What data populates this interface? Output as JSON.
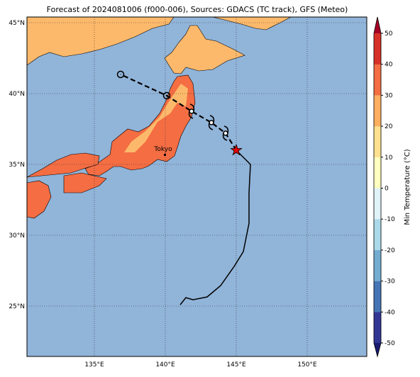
{
  "title": "Forecast of 2024081006 (f000-006), Sources: GDACS (TC track), GFS (Meteo)",
  "map": {
    "lonlim": [
      130.25,
      154.2
    ],
    "latlim": [
      21.45,
      45.4
    ],
    "lonticks": [
      {
        "value": 135,
        "label": "135°E"
      },
      {
        "value": 140,
        "label": "140°E"
      },
      {
        "value": 145,
        "label": "145°E"
      },
      {
        "value": 150,
        "label": "150°E"
      }
    ],
    "latticks": [
      {
        "value": 25,
        "label": "25°N"
      },
      {
        "value": 30,
        "label": "30°N"
      },
      {
        "value": 35,
        "label": "35°N"
      },
      {
        "value": 40,
        "label": "40°N"
      },
      {
        "value": 45,
        "label": "45°N"
      }
    ],
    "ocean_color": "#91b4d9",
    "past_track": {
      "lon": [
        141.05,
        141.45,
        141.95,
        142.95,
        143.9,
        144.85,
        145.5,
        145.9,
        145.9,
        146.0,
        145.0
      ],
      "lat": [
        25.1,
        25.6,
        25.45,
        25.65,
        26.45,
        27.8,
        28.85,
        30.85,
        33.0,
        35.0,
        36.0
      ]
    },
    "current_position": {
      "lon": 145.0,
      "lat": 36.0
    },
    "forecast_track": {
      "lon": [
        145.0,
        144.25,
        143.25,
        141.85,
        140.1,
        136.85
      ],
      "lat": [
        36.0,
        37.2,
        37.95,
        38.75,
        39.85,
        41.35
      ]
    },
    "city": {
      "name": "Tokyo",
      "lon": 139.85,
      "lat": 36.1
    }
  },
  "colorbar": {
    "label": "Min Temperature (°C)",
    "lim": [
      -50,
      50
    ],
    "ticks": [
      -50,
      -40,
      -30,
      -20,
      -10,
      0,
      10,
      20,
      30,
      40,
      50
    ],
    "colors": [
      "#313695",
      "#4575b4",
      "#74add1",
      "#abd9e9",
      "#e0f3f8",
      "#ffffbf",
      "#fee090",
      "#fdae61",
      "#f46d43",
      "#d73027"
    ],
    "under_color": "#1a1a6e",
    "over_color": "#a50026"
  }
}
